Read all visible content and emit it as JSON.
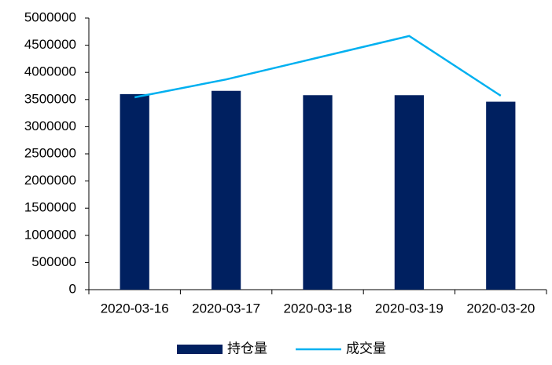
{
  "chart_data": {
    "type": "bar",
    "categories": [
      "2020-03-16",
      "2020-03-17",
      "2020-03-18",
      "2020-03-19",
      "2020-03-20"
    ],
    "series": [
      {
        "name": "持仓量",
        "type": "bar",
        "color": "#002060",
        "values": [
          3600000,
          3660000,
          3580000,
          3580000,
          3460000
        ]
      },
      {
        "name": "成交量",
        "type": "line",
        "color": "#00b0f0",
        "values": [
          3540000,
          3870000,
          4270000,
          4670000,
          3570000
        ]
      }
    ],
    "ylim": [
      0,
      5000000
    ],
    "yticks": [
      0,
      500000,
      1000000,
      1500000,
      2000000,
      2500000,
      3000000,
      3500000,
      4000000,
      4500000,
      5000000
    ],
    "grid": false,
    "legend": "bottom"
  }
}
